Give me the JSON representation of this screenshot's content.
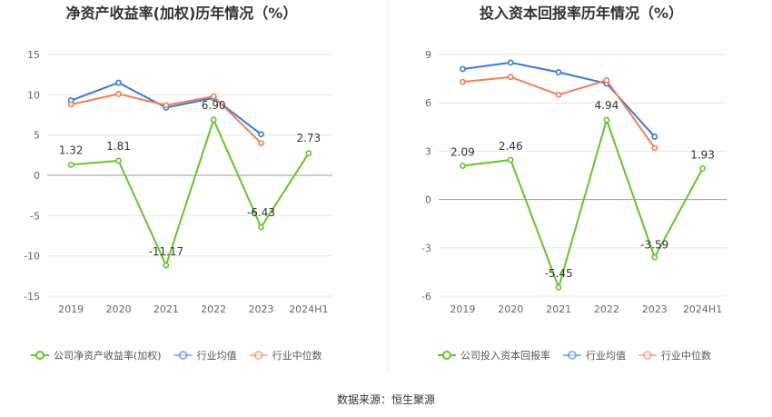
{
  "source_text": "数据来源：恒生聚源",
  "colors": {
    "company": "#66c32e",
    "industry_avg": "#3a78d8",
    "industry_median": "#f07f55",
    "grid": "#e6e6e6",
    "axis_text": "#666666",
    "title": "#333333"
  },
  "chart_data": [
    {
      "type": "line",
      "title": "净资产收益率(加权)历年情况（%）",
      "categories": [
        "2019",
        "2020",
        "2021",
        "2022",
        "2023",
        "2024H1"
      ],
      "ylim": [
        -15,
        15
      ],
      "yticks": [
        "15",
        "10",
        "5",
        "0",
        "-5",
        "-10",
        "-15"
      ],
      "grid": true,
      "legend_position": "bottom-left",
      "series": [
        {
          "name": "公司净资产收益率(加权)",
          "key": "company",
          "values": [
            1.32,
            1.81,
            -11.17,
            6.9,
            -6.43,
            2.73
          ],
          "labels": [
            "1.32",
            "1.81",
            "-11.17",
            "6.90",
            "-6.43",
            "2.73"
          ]
        },
        {
          "name": "行业均值",
          "key": "industry_avg",
          "values": [
            9.3,
            11.5,
            8.4,
            9.6,
            5.1,
            null
          ]
        },
        {
          "name": "行业中位数",
          "key": "industry_median",
          "values": [
            8.8,
            10.1,
            8.7,
            9.8,
            4.0,
            null
          ]
        }
      ]
    },
    {
      "type": "line",
      "title": "投入资本回报率历年情况（%）",
      "categories": [
        "2019",
        "2020",
        "2021",
        "2022",
        "2023",
        "2024H1"
      ],
      "ylim": [
        -6,
        9
      ],
      "yticks": [
        "9",
        "6",
        "3",
        "0",
        "-3",
        "-6"
      ],
      "grid": true,
      "legend_position": "bottom-left",
      "series": [
        {
          "name": "公司投入资本回报率",
          "key": "company",
          "values": [
            2.09,
            2.46,
            -5.45,
            4.94,
            -3.59,
            1.93
          ],
          "labels": [
            "2.09",
            "2.46",
            "-5.45",
            "4.94",
            "-3.59",
            "1.93"
          ]
        },
        {
          "name": "行业均值",
          "key": "industry_avg",
          "values": [
            8.1,
            8.5,
            7.9,
            7.2,
            3.9,
            null
          ]
        },
        {
          "name": "行业中位数",
          "key": "industry_median",
          "values": [
            7.3,
            7.6,
            6.5,
            7.4,
            3.2,
            null
          ]
        }
      ]
    }
  ]
}
